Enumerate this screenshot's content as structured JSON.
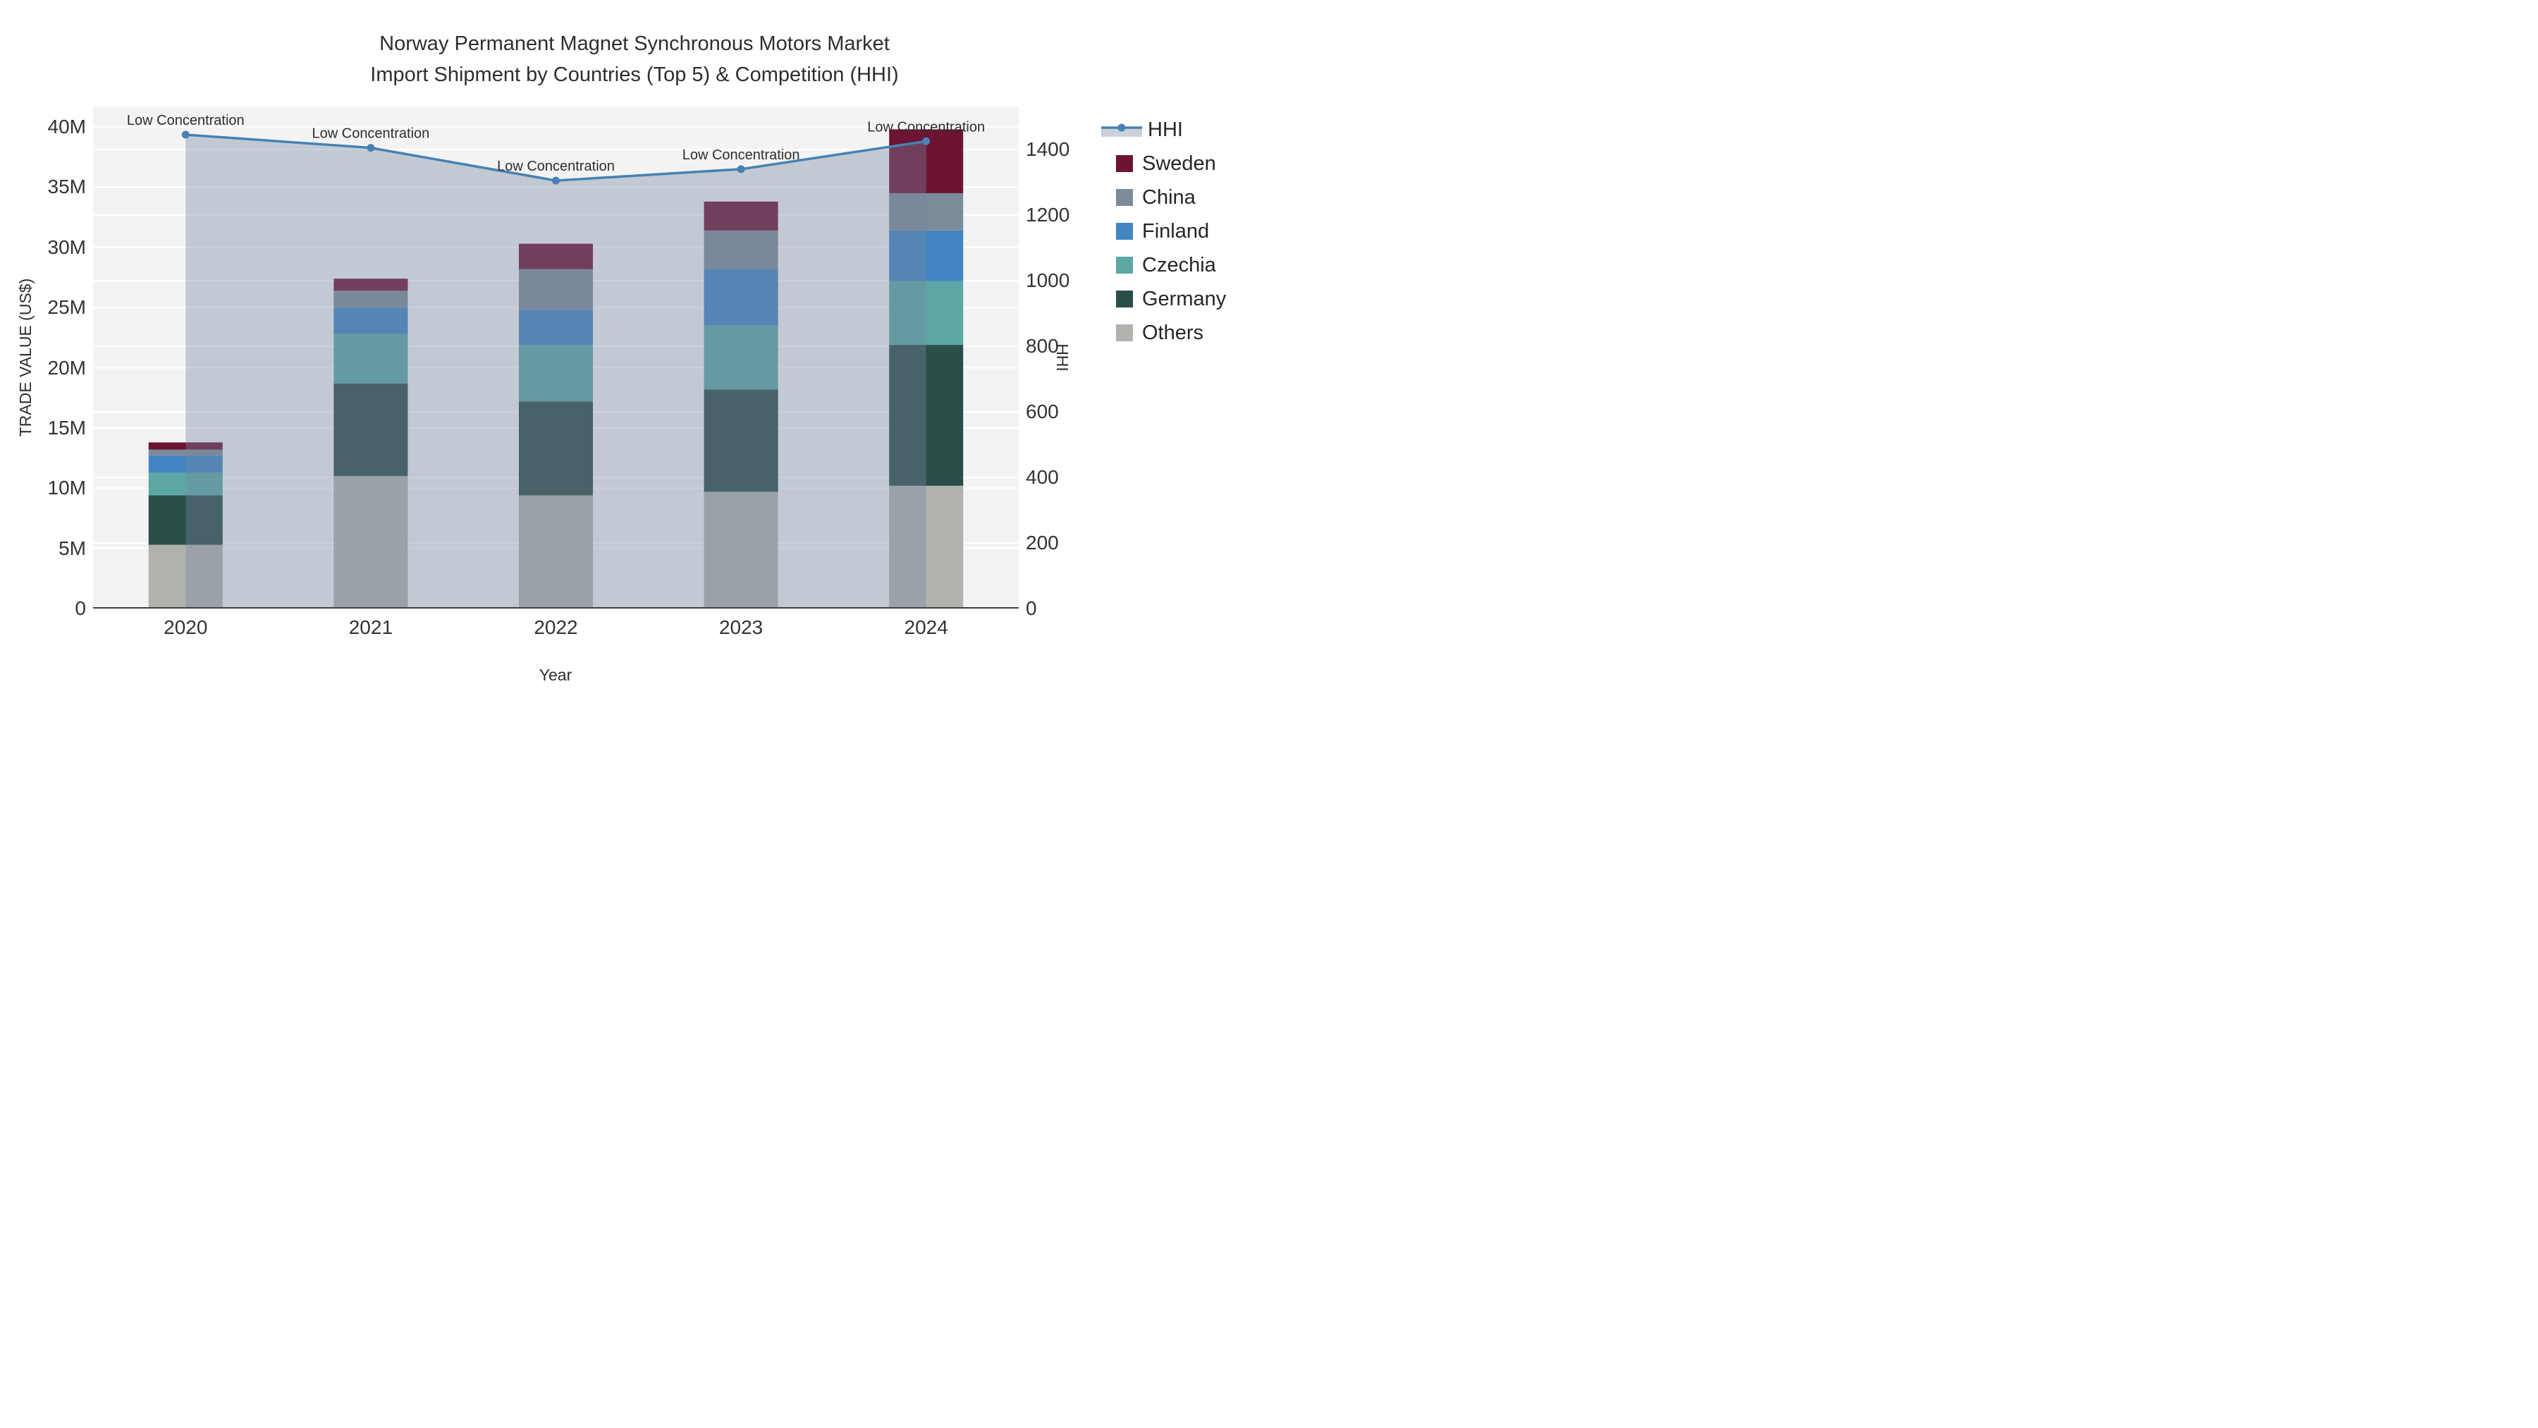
{
  "title": {
    "line1": "Norway Permanent Magnet Synchronous Motors Market",
    "line2": "Import Shipment by Countries (Top 5) & Competition (HHI)"
  },
  "axes": {
    "x_title": "Year",
    "y_left_title": "TRADE VALUE (US$)",
    "y_right_title": "HHI",
    "y_left_ticks": [
      {
        "v": 0,
        "label": "0"
      },
      {
        "v": 5,
        "label": "5M"
      },
      {
        "v": 10,
        "label": "10M"
      },
      {
        "v": 15,
        "label": "15M"
      },
      {
        "v": 20,
        "label": "20M"
      },
      {
        "v": 25,
        "label": "25M"
      },
      {
        "v": 30,
        "label": "30M"
      },
      {
        "v": 35,
        "label": "35M"
      },
      {
        "v": 40,
        "label": "40M"
      }
    ],
    "y_right_ticks": [
      {
        "v": 0,
        "label": "0"
      },
      {
        "v": 200,
        "label": "200"
      },
      {
        "v": 400,
        "label": "400"
      },
      {
        "v": 600,
        "label": "600"
      },
      {
        "v": 800,
        "label": "800"
      },
      {
        "v": 1000,
        "label": "1000"
      },
      {
        "v": 1200,
        "label": "1200"
      },
      {
        "v": 1400,
        "label": "1400"
      }
    ]
  },
  "legend": [
    {
      "label": "HHI",
      "type": "line",
      "color": "#4682b4"
    },
    {
      "label": "Sweden",
      "type": "swatch",
      "color": "#6d1435"
    },
    {
      "label": "China",
      "type": "swatch",
      "color": "#7b8b9a"
    },
    {
      "label": "Finland",
      "type": "swatch",
      "color": "#4285c2"
    },
    {
      "label": "Czechia",
      "type": "swatch",
      "color": "#5ca6a6"
    },
    {
      "label": "Germany",
      "type": "swatch",
      "color": "#2b4e49"
    },
    {
      "label": "Others",
      "type": "swatch",
      "color": "#b0b2ae"
    }
  ],
  "chart_data": {
    "type": "bar",
    "subtype": "stacked bars with overlaid line (dual y-axis)",
    "categories": [
      "2020",
      "2021",
      "2022",
      "2023",
      "2024"
    ],
    "bar_value_unit": "million US$ (left axis, TRADE VALUE)",
    "series": [
      {
        "name": "Sweden",
        "color": "#6d1435",
        "values": [
          0.6,
          1.0,
          2.1,
          2.4,
          5.3
        ]
      },
      {
        "name": "China",
        "color": "#7b8b9a",
        "values": [
          0.5,
          1.4,
          3.4,
          3.2,
          3.1
        ]
      },
      {
        "name": "Finland",
        "color": "#4285c2",
        "values": [
          1.4,
          2.2,
          2.9,
          4.7,
          4.2
        ]
      },
      {
        "name": "Czechia",
        "color": "#5ca6a6",
        "values": [
          1.9,
          4.1,
          4.7,
          5.3,
          5.3
        ]
      },
      {
        "name": "Germany",
        "color": "#2b4e49",
        "values": [
          4.1,
          7.7,
          7.8,
          8.5,
          11.7
        ]
      },
      {
        "name": "Others",
        "color": "#b0b2ae",
        "values": [
          5.3,
          11.0,
          9.4,
          9.7,
          10.2
        ]
      }
    ],
    "stack_order_bottom_to_top": [
      "Others",
      "Germany",
      "Czechia",
      "Finland",
      "China",
      "Sweden"
    ],
    "bar_totals": [
      13.8,
      27.4,
      30.3,
      33.8,
      39.8
    ],
    "line": {
      "name": "HHI",
      "axis": "right",
      "color": "#4682b4",
      "fill_color": "rgba(119,134,158,0.38)",
      "values": [
        1445,
        1405,
        1305,
        1340,
        1425
      ]
    },
    "annotations": [
      {
        "x": "2020",
        "y": 1445,
        "text": "Low Concentration"
      },
      {
        "x": "2021",
        "y": 1405,
        "text": "Low Concentration"
      },
      {
        "x": "2022",
        "y": 1305,
        "text": "Low Concentration"
      },
      {
        "x": "2023",
        "y": 1340,
        "text": "Low Concentration"
      },
      {
        "x": "2024",
        "y": 1425,
        "text": "Low Concentration"
      }
    ],
    "y_left_max": 41.7,
    "y_right_max": 1531,
    "grid": true,
    "plot_background": "#f3f3f3",
    "legend_position": "right",
    "bar_width_frac": 0.4
  }
}
